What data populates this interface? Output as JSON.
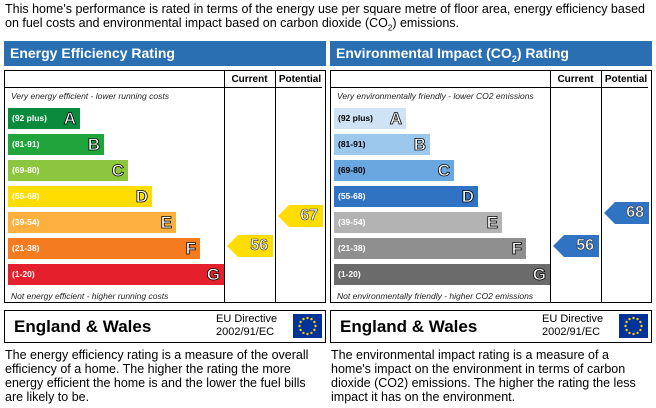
{
  "intro": {
    "text_before": "This home's performance is rated in terms of the energy use per square metre of floor area, energy efficiency based on fuel costs and environmental impact based on carbon dioxide (CO",
    "sub": "2",
    "text_after": ") emissions."
  },
  "eer": {
    "title": "Energy Efficiency Rating",
    "col_current": "Current",
    "col_potential": "Potential",
    "top_note": "Very energy efficient - lower running costs",
    "bottom_note": "Not energy efficient - higher running costs",
    "bands": [
      {
        "range": "(92 plus)",
        "letter": "A",
        "color": "#0a8a3c"
      },
      {
        "range": "(81-91)",
        "letter": "B",
        "color": "#1fa53b"
      },
      {
        "range": "(69-80)",
        "letter": "C",
        "color": "#8cc63e"
      },
      {
        "range": "(55-68)",
        "letter": "D",
        "color": "#ffdd00"
      },
      {
        "range": "(39-54)",
        "letter": "E",
        "color": "#fbb040"
      },
      {
        "range": "(21-38)",
        "letter": "F",
        "color": "#f47b20"
      },
      {
        "range": "(1-20)",
        "letter": "G",
        "color": "#e3202b"
      }
    ],
    "current": "56",
    "current_color": "#ffdd00",
    "potential": "67",
    "potential_color": "#ffdd00",
    "country": "England & Wales",
    "directive_line1": "EU Directive",
    "directive_line2": "2002/91/EC",
    "caption": "The energy efficiency rating is a measure of the overall efficiency of a home. The higher the rating the more energy efficient the home is and the lower the fuel bills are likely to be."
  },
  "ei": {
    "title_before": "Environmental Impact (CO",
    "title_sub": "2",
    "title_after": ") Rating",
    "col_current": "Current",
    "col_potential": "Potential",
    "top_note": "Very environmentally friendly - lower CO2 emissions",
    "bottom_note": "Not environmentally friendly - higher CO2 emissions",
    "bands": [
      {
        "range": "(92 plus)",
        "letter": "A",
        "color": "#cfe3f5"
      },
      {
        "range": "(81-91)",
        "letter": "B",
        "color": "#9cc8ee"
      },
      {
        "range": "(69-80)",
        "letter": "C",
        "color": "#6aa6e0"
      },
      {
        "range": "(55-68)",
        "letter": "D",
        "color": "#2f73c2"
      },
      {
        "range": "(39-54)",
        "letter": "E",
        "color": "#b3b3b3"
      },
      {
        "range": "(21-38)",
        "letter": "F",
        "color": "#8f8f8f"
      },
      {
        "range": "(1-20)",
        "letter": "G",
        "color": "#6b6b6b"
      }
    ],
    "current": "56",
    "current_color": "#2f73c2",
    "potential": "68",
    "potential_color": "#2f73c2",
    "country": "England & Wales",
    "directive_line1": "EU Directive",
    "directive_line2": "2002/91/EC",
    "caption": "The environmental impact rating is a measure of a home's impact on the environment in terms of carbon dioxide (CO2) emissions. The higher the rating the less impact it has on the environment."
  }
}
